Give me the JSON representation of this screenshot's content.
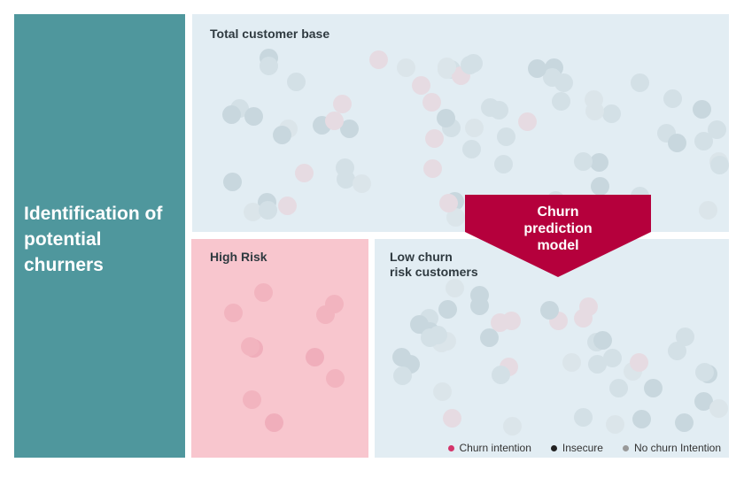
{
  "title": "Identification of potential churners",
  "panels": {
    "total": "Total customer base",
    "high": "High Risk",
    "low_1": "Low churn",
    "low_2": "risk customers"
  },
  "model": {
    "line1": "Churn",
    "line2": "prediction",
    "line3": "model"
  },
  "legend": [
    {
      "label": "Churn intention",
      "color": "#d4346a"
    },
    {
      "label": "Insecure",
      "color": "#222222"
    },
    {
      "label": "No churn Intention",
      "color": "#999999"
    }
  ],
  "colors": {
    "teal": "#4f979d",
    "accent": "#b5003c",
    "pink": "#f8c6ce",
    "panel": "#e2edf3"
  }
}
